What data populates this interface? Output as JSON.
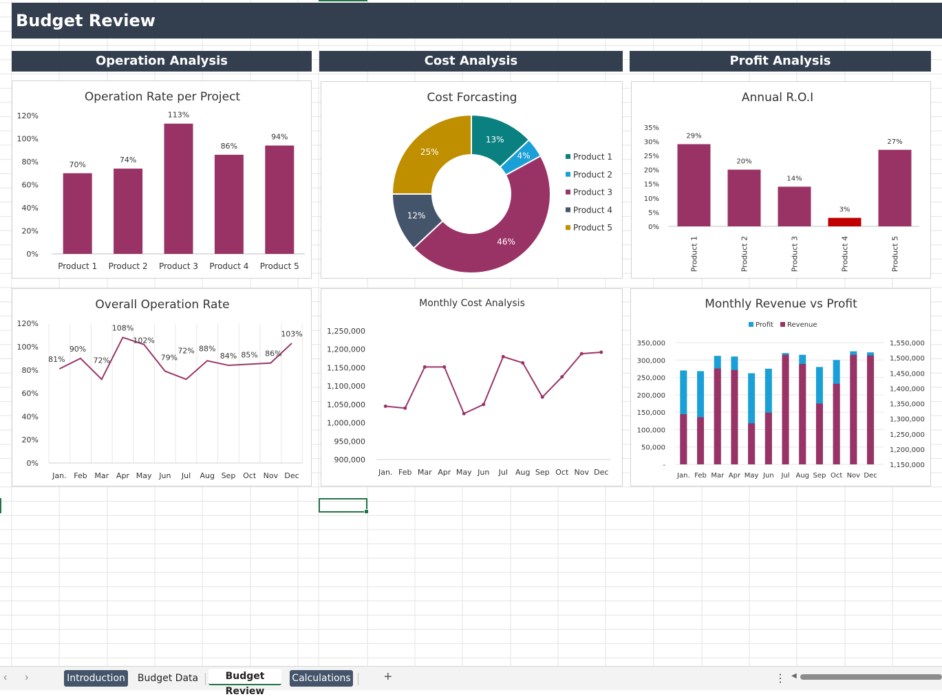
{
  "dashboard_title": "Budget Review",
  "sections": {
    "operation": "Operation Analysis",
    "cost": "Cost Analysis",
    "profit": "Profit Analysis"
  },
  "colors": {
    "header": "#333f4f",
    "magenta": "#993366",
    "teal": "#0a8080",
    "cyan": "#1a9fd6",
    "slate": "#44546a",
    "gold": "#bf8f00",
    "red": "#c00000"
  },
  "chart_data": [
    {
      "id": "operation_rate",
      "type": "bar",
      "title": "Operation Rate per Project",
      "categories": [
        "Product 1",
        "Product 2",
        "Product 3",
        "Product 4",
        "Product 5"
      ],
      "values": [
        70,
        74,
        113,
        86,
        94
      ],
      "data_labels": [
        "70%",
        "74%",
        "113%",
        "86%",
        "94%"
      ],
      "y_ticks": [
        "0%",
        "20%",
        "40%",
        "60%",
        "80%",
        "100%",
        "120%"
      ],
      "ylim": [
        0,
        120
      ],
      "grid": false
    },
    {
      "id": "cost_forecasting",
      "type": "pie",
      "title": "Cost Forcasting",
      "legend": [
        "Product 1",
        "Product 2",
        "Product 3",
        "Product 4",
        "Product 5"
      ],
      "values": [
        13,
        4,
        46,
        12,
        25
      ],
      "data_labels": [
        "13%",
        "4%",
        "46%",
        "12%",
        "25%"
      ],
      "legend_position": "right"
    },
    {
      "id": "annual_roi",
      "type": "bar",
      "title": "Annual R.O.I",
      "categories": [
        "Product 1",
        "Product 2",
        "Product 3",
        "Product 4",
        "Product 5"
      ],
      "values": [
        29,
        20,
        14,
        3,
        27
      ],
      "data_labels": [
        "29%",
        "20%",
        "14%",
        "3%",
        "27%"
      ],
      "y_ticks": [
        "0%",
        "5%",
        "10%",
        "15%",
        "20%",
        "25%",
        "30%",
        "35%"
      ],
      "ylim": [
        0,
        35
      ],
      "grid": false
    },
    {
      "id": "overall_operation_rate",
      "type": "line",
      "title": "Overall Operation Rate",
      "categories": [
        "Jan.",
        "Feb",
        "Mar",
        "Apr",
        "May",
        "Jun",
        "Jul",
        "Aug",
        "Sep",
        "Oct",
        "Nov",
        "Dec"
      ],
      "values": [
        81,
        90,
        72,
        108,
        102,
        79,
        72,
        88,
        84,
        85,
        86,
        103
      ],
      "data_labels": [
        "81%",
        "90%",
        "72%",
        "108%",
        "102%",
        "79%",
        "72%",
        "88%",
        "84%",
        "85%",
        "86%",
        "103%"
      ],
      "y_ticks": [
        "0%",
        "20%",
        "40%",
        "60%",
        "80%",
        "100%",
        "120%"
      ],
      "ylim": [
        0,
        120
      ],
      "grid": true
    },
    {
      "id": "monthly_cost",
      "type": "line",
      "title": "Monthly Cost Analysis",
      "categories": [
        "Jan.",
        "Feb",
        "Mar",
        "Apr",
        "May",
        "Jun",
        "Jul",
        "Aug",
        "Sep",
        "Oct",
        "Nov",
        "Dec"
      ],
      "values": [
        1045000,
        1040000,
        1152000,
        1152000,
        1025000,
        1050000,
        1180000,
        1163000,
        1070000,
        1125000,
        1188000,
        1192000
      ],
      "y_ticks": [
        "900,000",
        "950,000",
        "1,000,000",
        "1,050,000",
        "1,100,000",
        "1,150,000",
        "1,200,000",
        "1,250,000"
      ],
      "ylim": [
        900000,
        1250000
      ],
      "grid": false
    },
    {
      "id": "revenue_vs_profit",
      "type": "bar",
      "title": "Monthly Revenue vs Profit",
      "categories": [
        "Jan.",
        "Feb",
        "Mar",
        "Apr",
        "May",
        "Jun",
        "Jul",
        "Aug",
        "Sep",
        "Oct",
        "Nov",
        "Dec"
      ],
      "series": [
        {
          "name": "Profit",
          "axis": "left",
          "values": [
            270000,
            268000,
            312000,
            310000,
            262000,
            275000,
            320000,
            315000,
            280000,
            300000,
            325000,
            322000
          ]
        },
        {
          "name": "Revenue",
          "axis": "right",
          "values": [
            1315000,
            1305000,
            1465000,
            1460000,
            1285000,
            1320000,
            1510000,
            1480000,
            1350000,
            1415000,
            1510000,
            1508000
          ]
        }
      ],
      "y_ticks_left": [
        "-",
        "50,000",
        "100,000",
        "150,000",
        "200,000",
        "250,000",
        "300,000",
        "350,000"
      ],
      "ylim_left": [
        0,
        350000
      ],
      "y_ticks_right": [
        "1,150,000",
        "1,200,000",
        "1,250,000",
        "1,300,000",
        "1,350,000",
        "1,400,000",
        "1,450,000",
        "1,500,000",
        "1,550,000"
      ],
      "ylim_right": [
        1150000,
        1550000
      ],
      "legend_position": "top"
    }
  ],
  "sheet_tabs": [
    "Introduction",
    "Budget Data",
    "Budget Review",
    "Calculations"
  ],
  "active_tab": "Budget Review",
  "statusbar": {
    "add_symbol": "+",
    "more_symbol": "⋮",
    "nav_prev": "‹",
    "nav_next": "›",
    "scroll_left": "◀"
  }
}
